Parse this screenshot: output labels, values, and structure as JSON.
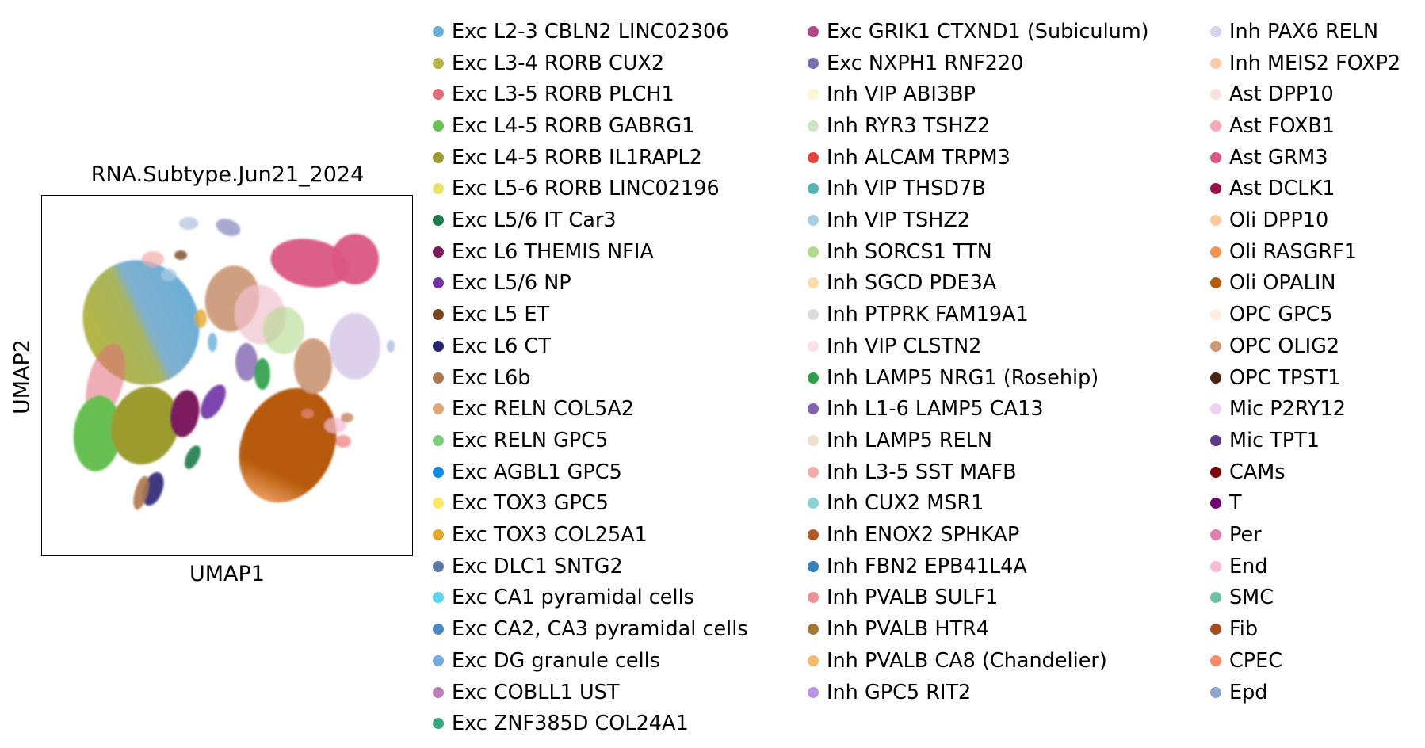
{
  "chart_data": {
    "type": "scatter",
    "title": "RNA.Subtype.Jun21_2024",
    "xlabel": "UMAP1",
    "ylabel": "UMAP2",
    "grid": false,
    "legend_placement": "right",
    "legend_columns": [
      [
        {
          "label": "Exc L2-3 CBLN2 LINC02306",
          "color": "#6baed6"
        },
        {
          "label": "Exc L3-4 RORB CUX2",
          "color": "#b5b645"
        },
        {
          "label": "Exc L3-5 RORB PLCH1",
          "color": "#e16a7b"
        },
        {
          "label": "Exc L4-5 RORB GABRG1",
          "color": "#67c053"
        },
        {
          "label": "Exc L4-5 RORB IL1RAPL2",
          "color": "#9b9b2f"
        },
        {
          "label": "Exc L5-6 RORB LINC02196",
          "color": "#e7e36b"
        },
        {
          "label": "Exc L5/6 IT Car3",
          "color": "#1e7b4b"
        },
        {
          "label": "Exc L6 THEMIS NFIA",
          "color": "#7b1b5e"
        },
        {
          "label": "Exc L5/6 NP",
          "color": "#7032a6"
        },
        {
          "label": "Exc L5 ET",
          "color": "#7a4420"
        },
        {
          "label": "Exc L6 CT",
          "color": "#2b2472"
        },
        {
          "label": "Exc L6b",
          "color": "#ad7850"
        },
        {
          "label": "Exc RELN COL5A2",
          "color": "#e0a878"
        },
        {
          "label": "Exc RELN GPC5",
          "color": "#7fcc7c"
        },
        {
          "label": "Exc AGBL1 GPC5",
          "color": "#118be1"
        },
        {
          "label": "Exc TOX3 GPC5",
          "color": "#ffe56a"
        },
        {
          "label": "Exc TOX3 COL25A1",
          "color": "#e0a92c"
        },
        {
          "label": "Exc DLC1 SNTG2",
          "color": "#5e78a6"
        },
        {
          "label": "Exc CA1 pyramidal cells",
          "color": "#5ad6ec"
        },
        {
          "label": "Exc CA2, CA3 pyramidal cells",
          "color": "#4a87c3"
        },
        {
          "label": "Exc DG granule cells",
          "color": "#73a9dc"
        },
        {
          "label": "Exc COBLL1 UST",
          "color": "#bd7fba"
        },
        {
          "label": "Exc ZNF385D COL24A1",
          "color": "#3aa57c"
        }
      ],
      [
        {
          "label": "Exc GRIK1 CTXND1 (Subiculum)",
          "color": "#b0468a"
        },
        {
          "label": "Exc NXPH1 RNF220",
          "color": "#7171b0"
        },
        {
          "label": "Inh VIP ABI3BP",
          "color": "#fbf7d2"
        },
        {
          "label": "Inh RYR3 TSHZ2",
          "color": "#cde7c6"
        },
        {
          "label": "Inh ALCAM TRPM3",
          "color": "#e6403f"
        },
        {
          "label": "Inh VIP THSD7B",
          "color": "#5ab1b4"
        },
        {
          "label": "Inh VIP TSHZ2",
          "color": "#aacde1"
        },
        {
          "label": "Inh SORCS1 TTN",
          "color": "#b2d98c"
        },
        {
          "label": "Inh SGCD PDE3A",
          "color": "#fbdca8"
        },
        {
          "label": "Inh PTPRK FAM19A1",
          "color": "#dcdcdc"
        },
        {
          "label": "Inh VIP CLSTN2",
          "color": "#fae1e8"
        },
        {
          "label": "Inh LAMP5 NRG1 (Rosehip)",
          "color": "#2f9e48"
        },
        {
          "label": "Inh L1-6 LAMP5 CA13",
          "color": "#8261b0"
        },
        {
          "label": "Inh LAMP5 RELN",
          "color": "#efe0cc"
        },
        {
          "label": "Inh L3-5 SST MAFB",
          "color": "#f1aca9"
        },
        {
          "label": "Inh CUX2 MSR1",
          "color": "#8dd1d6"
        },
        {
          "label": "Inh ENOX2 SPHKAP",
          "color": "#b25a25"
        },
        {
          "label": "Inh FBN2 EPB41L4A",
          "color": "#3581bb"
        },
        {
          "label": "Inh PVALB SULF1",
          "color": "#ef9094"
        },
        {
          "label": "Inh PVALB HTR4",
          "color": "#a47631"
        },
        {
          "label": "Inh PVALB CA8 (Chandelier)",
          "color": "#f6b869"
        },
        {
          "label": "Inh GPC5 RIT2",
          "color": "#bc94e6"
        }
      ],
      [
        {
          "label": "Inh PAX6 RELN",
          "color": "#ddd0eb"
        },
        {
          "label": "Inh MEIS2 FOXP2",
          "color": "#fbcbac"
        },
        {
          "label": "Ast DPP10",
          "color": "#fbe0e1"
        },
        {
          "label": "Ast FOXB1",
          "color": "#f6a8b8"
        },
        {
          "label": "Ast GRM3",
          "color": "#da5784"
        },
        {
          "label": "Ast DCLK1",
          "color": "#931447"
        },
        {
          "label": "Oli DPP10",
          "color": "#fdcb9b"
        },
        {
          "label": "Oli RASGRF1",
          "color": "#f8924f"
        },
        {
          "label": "Oli OPALIN",
          "color": "#b75a07"
        },
        {
          "label": "OPC GPC5",
          "color": "#fdeee2"
        },
        {
          "label": "OPC OLIG2",
          "color": "#cc9a7a"
        },
        {
          "label": "OPC TPST1",
          "color": "#482510"
        },
        {
          "label": "Mic P2RY12",
          "color": "#ebd1f2"
        },
        {
          "label": "Mic TPT1",
          "color": "#5f3a88"
        },
        {
          "label": "CAMs",
          "color": "#7c0505"
        },
        {
          "label": "T",
          "color": "#6e0572"
        },
        {
          "label": "Per",
          "color": "#e27eae"
        },
        {
          "label": "End",
          "color": "#f5bbd4"
        },
        {
          "label": "SMC",
          "color": "#6cc19e"
        },
        {
          "label": "Fib",
          "color": "#a64d20"
        },
        {
          "label": "CPEC",
          "color": "#f78b63"
        },
        {
          "label": "Epd",
          "color": "#8ea5d0"
        }
      ]
    ]
  }
}
